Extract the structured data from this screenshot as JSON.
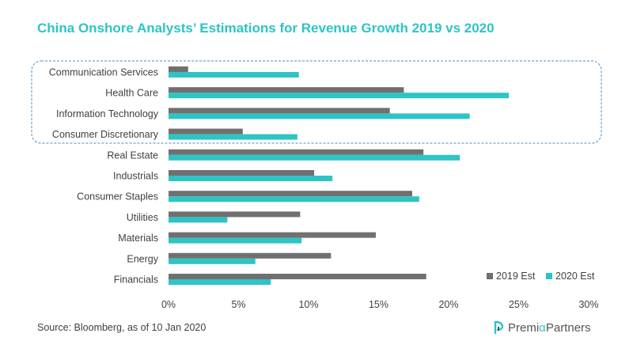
{
  "title": "China Onshore Analysts’ Estimations for Revenue Growth 2019 vs 2020",
  "source": "Source: Bloomberg,  as of 10 Jan 2020",
  "logo": {
    "part1": "Premi",
    "alpha": "α",
    "part2": " Partners"
  },
  "colors": {
    "series_2019": "#707070",
    "series_2020": "#2ec4c4",
    "highlight_box": "#4a8fc9"
  },
  "chart_data": {
    "type": "bar",
    "orientation": "horizontal",
    "categories": [
      "Communication Services",
      "Health Care",
      "Information Technology",
      "Consumer Discretionary",
      "Real Estate",
      "Industrials",
      "Consumer Staples",
      "Utilities",
      "Materials",
      "Energy",
      "Financials"
    ],
    "series": [
      {
        "name": "2019 Est",
        "values": [
          1.4,
          16.8,
          15.8,
          5.3,
          18.2,
          10.4,
          17.4,
          9.4,
          14.8,
          11.6,
          18.4
        ]
      },
      {
        "name": "2020 Est",
        "values": [
          9.3,
          24.3,
          21.5,
          9.2,
          20.8,
          11.7,
          17.9,
          4.2,
          9.5,
          6.2,
          7.3
        ]
      }
    ],
    "x_ticks": [
      "0%",
      "5%",
      "10%",
      "15%",
      "20%",
      "25%",
      "30%"
    ],
    "xlim": [
      0,
      30
    ],
    "legend_position": "bottom-right",
    "highlighted_categories": [
      "Communication Services",
      "Health Care",
      "Information Technology",
      "Consumer Discretionary"
    ],
    "grid": false
  }
}
